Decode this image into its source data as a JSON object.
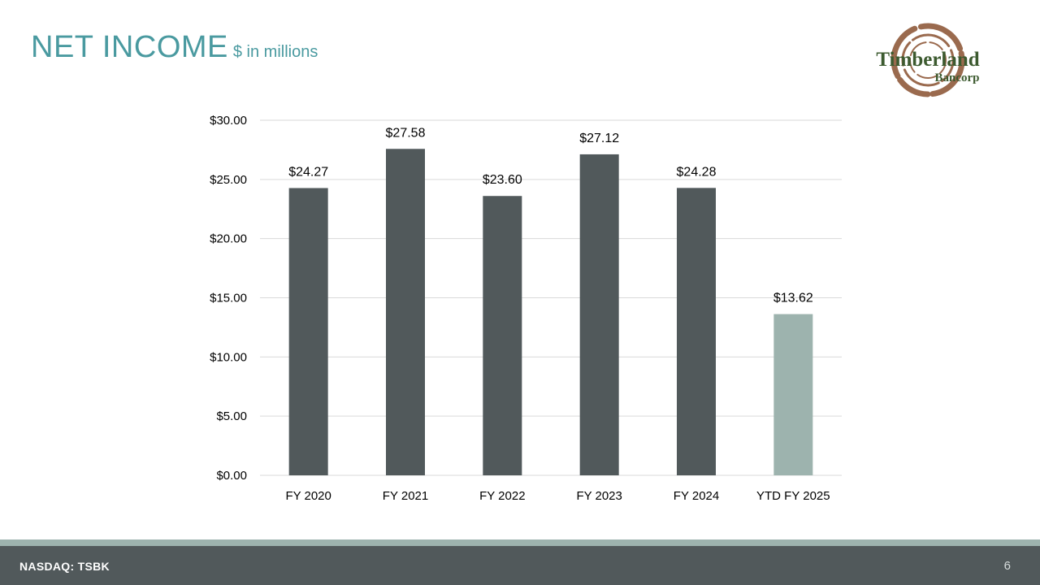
{
  "page": {
    "title": "NET INCOME",
    "subtitle": "$ in millions",
    "footer_left": "NASDAQ: TSBK",
    "page_number": "6"
  },
  "logo": {
    "line1": "Timberland",
    "line2": "Bancorp"
  },
  "colors": {
    "title": "#4a9aa0",
    "bar_primary": "#51595b",
    "bar_highlight": "#9db3ae",
    "gridline": "#d9d9d9",
    "footer_band": "#51595b",
    "footer_accent": "#9db3ae",
    "logo_brown": "#9a6a4e",
    "logo_green": "#3c5a2f"
  },
  "chart_data": {
    "type": "bar",
    "title": "",
    "xlabel": "",
    "ylabel": "",
    "categories": [
      "FY 2020",
      "FY 2021",
      "FY 2022",
      "FY 2023",
      "FY 2024",
      "YTD FY 2025"
    ],
    "values": [
      24.27,
      27.58,
      23.6,
      27.12,
      24.28,
      13.62
    ],
    "value_labels": [
      "$24.27",
      "$27.58",
      "$23.60",
      "$27.12",
      "$24.28",
      "$13.62"
    ],
    "highlight": [
      false,
      false,
      false,
      false,
      false,
      true
    ],
    "ylim": [
      0,
      30
    ],
    "yticks": [
      0,
      5,
      10,
      15,
      20,
      25,
      30
    ],
    "ytick_labels": [
      "$0.00",
      "$5.00",
      "$10.00",
      "$15.00",
      "$20.00",
      "$25.00",
      "$30.00"
    ],
    "grid": true,
    "legend": "none"
  }
}
